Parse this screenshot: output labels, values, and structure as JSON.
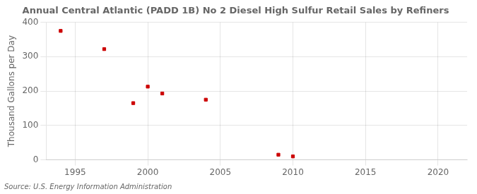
{
  "chart_data": {
    "type": "scatter",
    "title": "Annual Central Atlantic (PADD 1B) No 2 Diesel High Sulfur Retail Sales by Refiners",
    "y_label": "Thousand Gallons per Day",
    "annotations": [
      "Source: U.S. Energy Information Administration"
    ],
    "x": [
      1994,
      1997,
      1999,
      2000,
      2001,
      2004,
      2009,
      2010
    ],
    "values": [
      375,
      322,
      165,
      213,
      193,
      175,
      15,
      10
    ],
    "color": "#cc0000",
    "marker": "square",
    "xlim": [
      1993,
      2022
    ],
    "ylim": [
      0,
      400
    ],
    "xticks": [
      1995,
      2000,
      2005,
      2010,
      2015,
      2020
    ],
    "yticks": [
      0,
      100,
      200,
      300,
      400
    ],
    "grid": true
  }
}
